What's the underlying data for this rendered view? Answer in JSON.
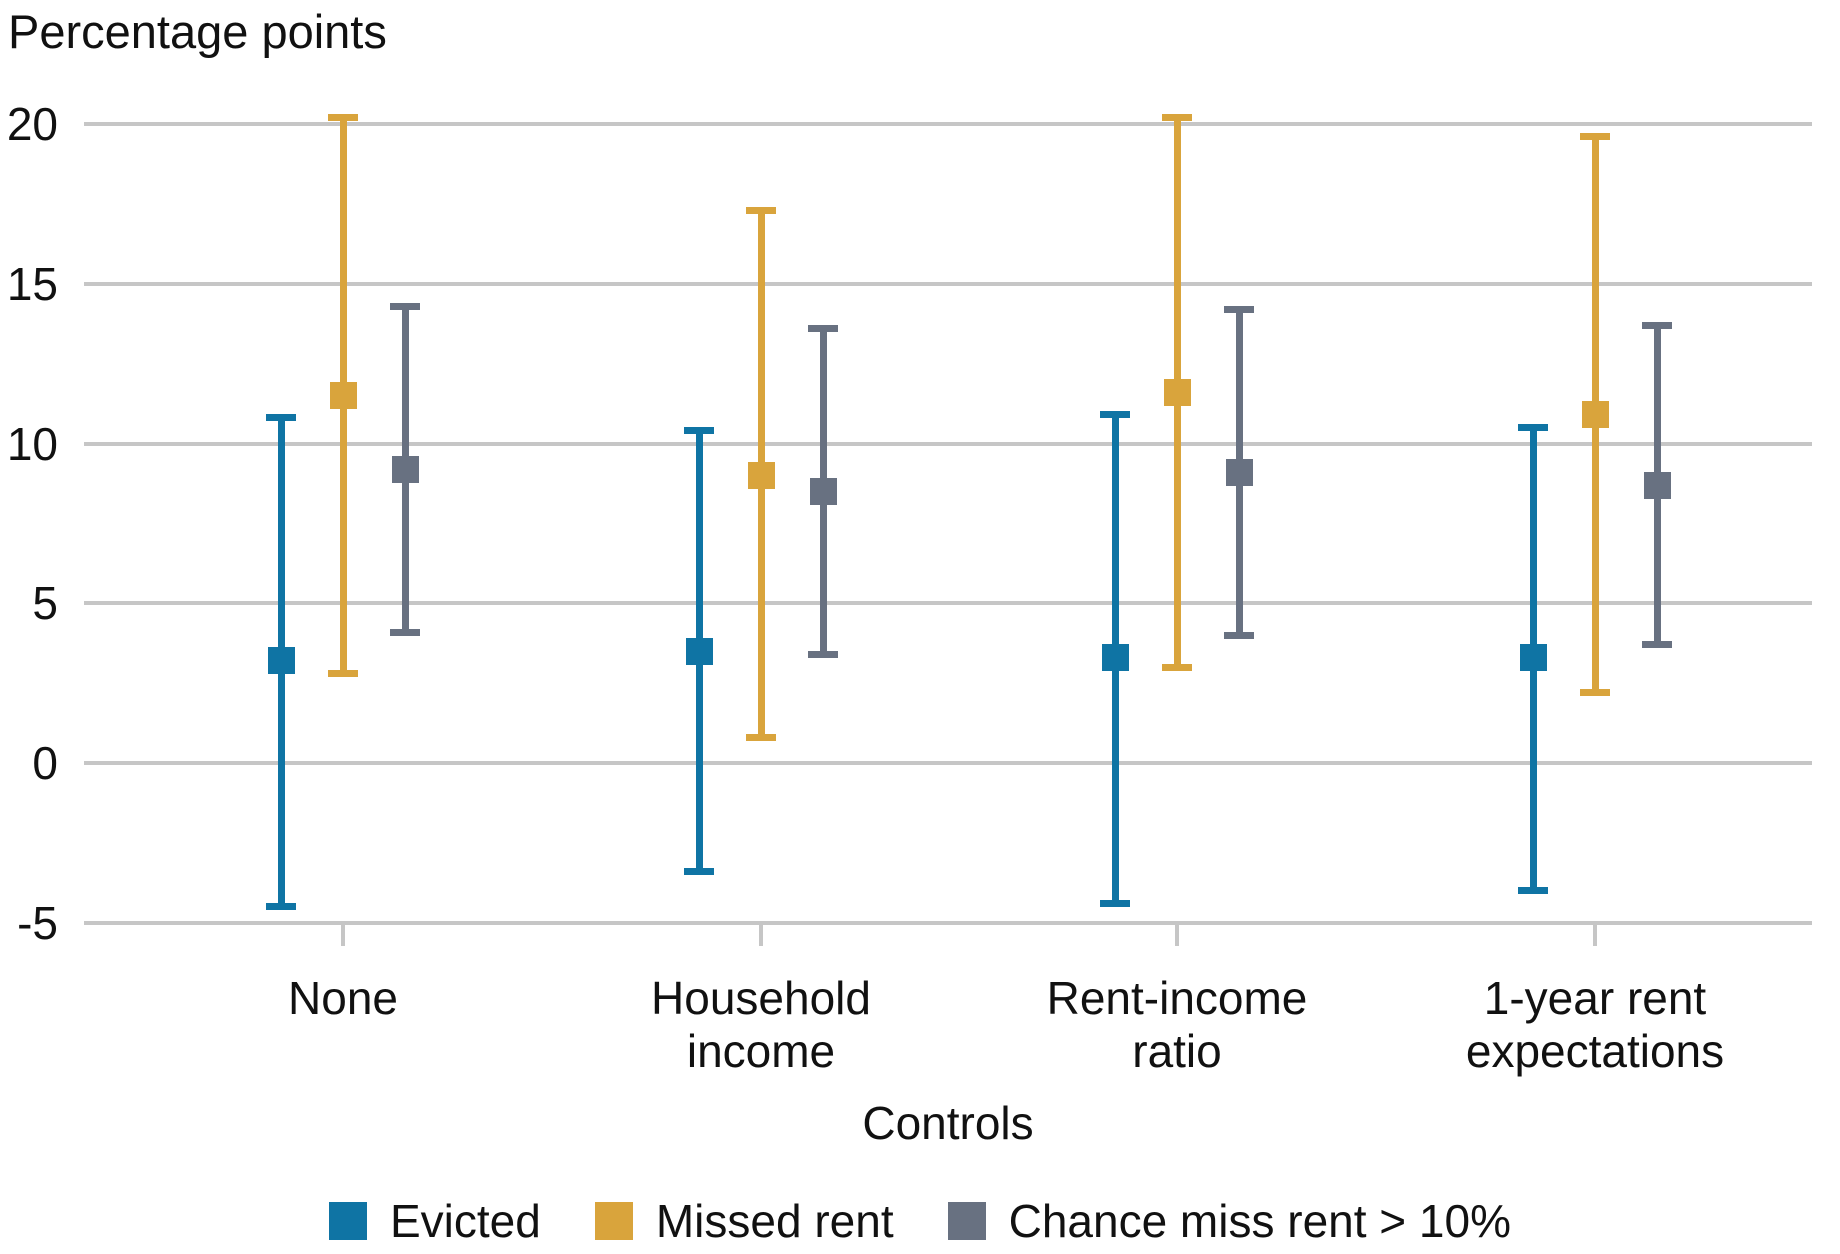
{
  "title": "Percentage points",
  "chart_data": {
    "type": "scatter",
    "subtype": "point-estimates-with-error-bars",
    "title": "",
    "xlabel": "Controls",
    "ylabel": "Percentage points",
    "ylim": [
      -5,
      20
    ],
    "yticks": [
      20,
      15,
      10,
      5,
      0,
      -5
    ],
    "grid": true,
    "legend_position": "bottom",
    "categories": [
      "None",
      "Household income",
      "Rent-income ratio",
      "1-year rent expectations"
    ],
    "category_label_lines": [
      [
        "None"
      ],
      [
        "Household",
        "income"
      ],
      [
        "Rent-income",
        "ratio"
      ],
      [
        "1-year rent",
        "expectations"
      ]
    ],
    "series": [
      {
        "name": "Evicted",
        "color": "#0f74a4",
        "estimates": [
          3.2,
          3.5,
          3.3,
          3.3
        ],
        "ci_low": [
          -4.5,
          -3.4,
          -4.4,
          -4.0
        ],
        "ci_high": [
          10.8,
          10.4,
          10.9,
          10.5
        ]
      },
      {
        "name": "Missed rent",
        "color": "#d9a43c",
        "estimates": [
          11.5,
          9.0,
          11.6,
          10.9
        ],
        "ci_low": [
          2.8,
          0.8,
          3.0,
          2.2
        ],
        "ci_high": [
          20.2,
          17.3,
          20.2,
          19.6
        ]
      },
      {
        "name": "Chance miss rent > 10%",
        "color": "#687181",
        "estimates": [
          9.2,
          8.5,
          9.1,
          8.7
        ],
        "ci_low": [
          4.1,
          3.4,
          4.0,
          3.7
        ],
        "ci_high": [
          14.3,
          13.6,
          14.2,
          13.7
        ]
      }
    ]
  }
}
